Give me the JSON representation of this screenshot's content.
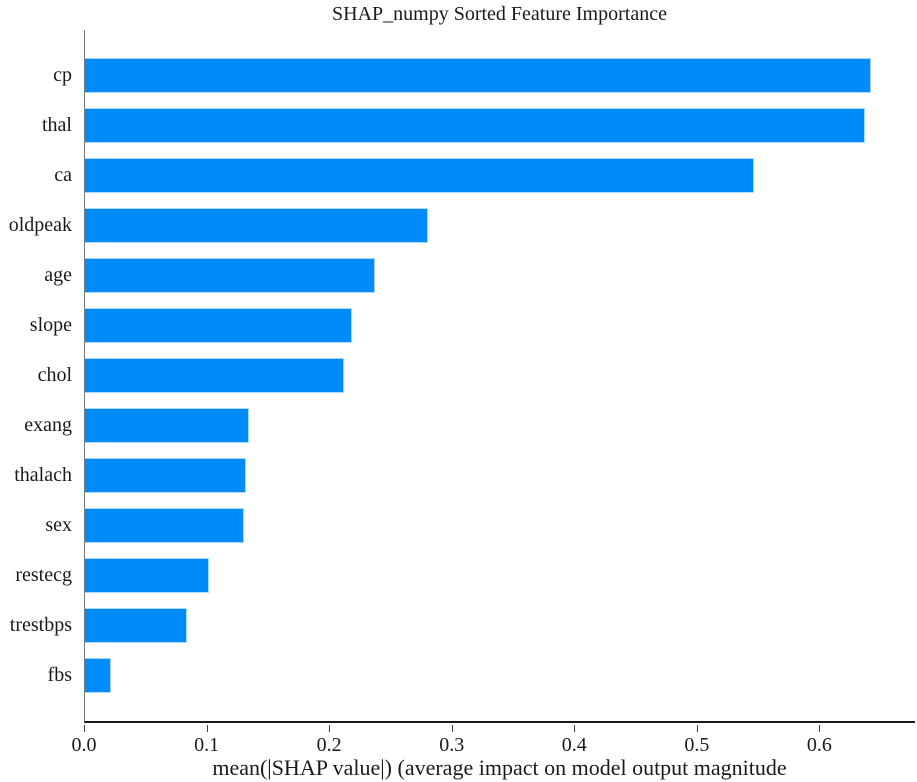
{
  "chart_data": {
    "type": "bar",
    "orientation": "horizontal",
    "title": "SHAP_numpy Sorted Feature Importance",
    "xlabel": "mean(|SHAP value|) (average impact on model output magnitude",
    "ylabel": "",
    "categories": [
      "cp",
      "thal",
      "ca",
      "oldpeak",
      "age",
      "slope",
      "chol",
      "exang",
      "thalach",
      "sex",
      "restecg",
      "trestbps",
      "fbs"
    ],
    "values": [
      0.641,
      0.636,
      0.546,
      0.28,
      0.237,
      0.218,
      0.211,
      0.134,
      0.131,
      0.13,
      0.101,
      0.083,
      0.021
    ],
    "xlim": [
      0,
      0.678
    ],
    "xticks": [
      0.0,
      0.1,
      0.2,
      0.3,
      0.4,
      0.5,
      0.6
    ],
    "xtick_labels": [
      "0.0",
      "0.1",
      "0.2",
      "0.3",
      "0.4",
      "0.5",
      "0.6"
    ],
    "grid": false,
    "legend": null,
    "bar_color": "#008bfb",
    "axis_color": "#1a1a1a",
    "spine_color": "#7a7a7a",
    "text_color": "#1a1a1a",
    "background_color": "#ffffff"
  }
}
